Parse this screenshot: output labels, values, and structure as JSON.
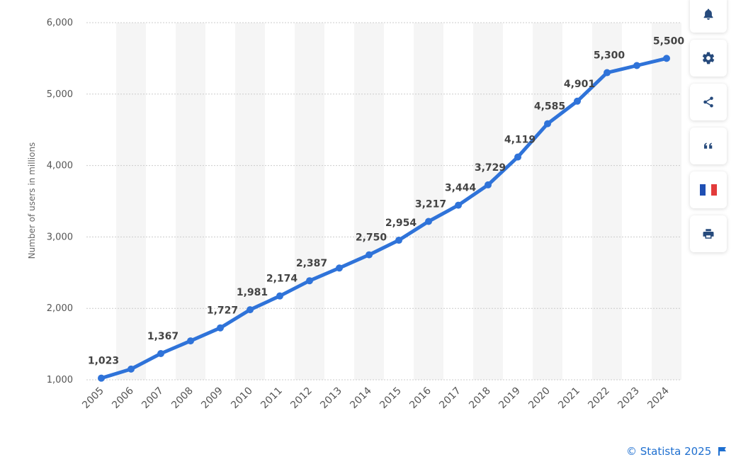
{
  "chart_data": {
    "type": "line",
    "x": [
      "2005",
      "2006",
      "2007",
      "2008",
      "2009",
      "2010",
      "2011",
      "2012",
      "2013",
      "2014",
      "2015",
      "2016",
      "2017",
      "2018",
      "2019",
      "2020",
      "2021",
      "2022",
      "2023",
      "2024"
    ],
    "series": [
      {
        "values": [
          1023,
          1150,
          1367,
          1545,
          1727,
          1981,
          2174,
          2387,
          2565,
          2750,
          2954,
          3217,
          3444,
          3729,
          4119,
          4585,
          4901,
          5300,
          5400,
          5500
        ],
        "labels": [
          "1,023",
          "",
          "1,367",
          "",
          "1,727",
          "1,981",
          "2,174",
          "2,387",
          "",
          "2,750",
          "2,954",
          "3,217",
          "3,444",
          "3,729",
          "4,119",
          "4,585",
          "4,901",
          "5,300",
          "",
          "5,500"
        ]
      }
    ],
    "ylabel": "Number of users in millions",
    "xlabel": "",
    "ylim": [
      1000,
      6000
    ],
    "yticks": [
      1000,
      2000,
      3000,
      4000,
      5000,
      6000
    ],
    "ytick_labels": [
      "1,000",
      "2,000",
      "3,000",
      "4,000",
      "5,000",
      "6,000"
    ],
    "grid": "horizontal dotted, alternating vertical bands",
    "line_color": "#2f73d9",
    "band_color": "#f5f5f5"
  },
  "toolbar": {
    "buttons": [
      {
        "name": "notification-button",
        "icon": "bell-icon"
      },
      {
        "name": "settings-button",
        "icon": "gear-icon"
      },
      {
        "name": "share-button",
        "icon": "share-icon"
      },
      {
        "name": "citation-button",
        "icon": "quote-icon"
      },
      {
        "name": "language-button",
        "icon": "french-flag-icon"
      },
      {
        "name": "print-button",
        "icon": "printer-icon"
      }
    ]
  },
  "footer": {
    "credit": "© Statista 2025",
    "flag_icon": "flag-icon"
  }
}
